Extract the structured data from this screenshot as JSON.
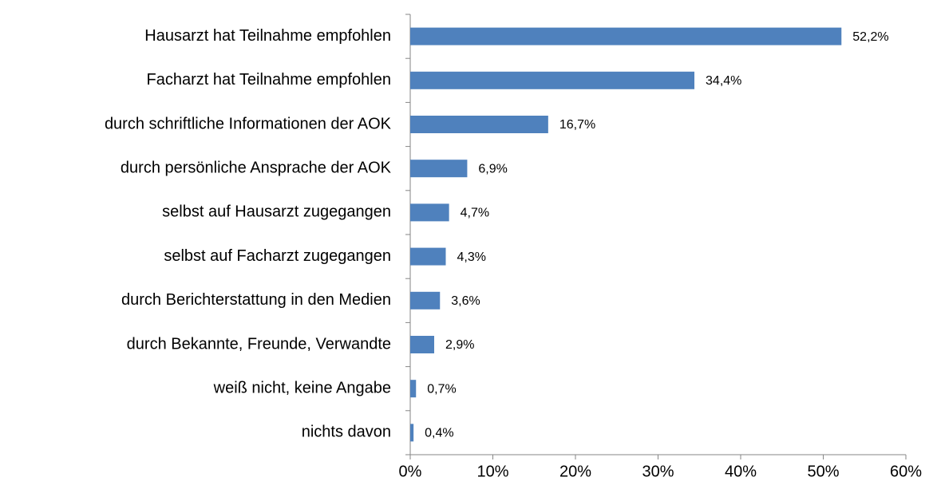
{
  "chart_data": {
    "type": "bar",
    "orientation": "horizontal",
    "categories": [
      "Hausarzt hat Teilnahme empfohlen",
      "Facharzt hat Teilnahme empfohlen",
      "durch schriftliche Informationen der AOK",
      "durch persönliche Ansprache der AOK",
      "selbst auf Hausarzt zugegangen",
      "selbst auf Facharzt zugegangen",
      "durch Berichterstattung in den Medien",
      "durch Bekannte, Freunde, Verwandte",
      "weiß nicht, keine Angabe",
      "nichts davon"
    ],
    "values": [
      52.2,
      34.4,
      16.7,
      6.9,
      4.7,
      4.3,
      3.6,
      2.9,
      0.7,
      0.4
    ],
    "value_labels": [
      "52,2%",
      "34,4%",
      "16,7%",
      "6,9%",
      "4,7%",
      "4,3%",
      "3,6%",
      "2,9%",
      "0,7%",
      "0,4%"
    ],
    "color": "#4f81bd",
    "xlim": [
      0,
      60
    ],
    "xticks": [
      {
        "value": 0,
        "label": "0%"
      },
      {
        "value": 10,
        "label": "10%"
      },
      {
        "value": 20,
        "label": "20%"
      },
      {
        "value": 30,
        "label": "30%"
      },
      {
        "value": 40,
        "label": "40%"
      },
      {
        "value": 50,
        "label": "50%"
      },
      {
        "value": 60,
        "label": "60%"
      }
    ],
    "grid": false
  }
}
